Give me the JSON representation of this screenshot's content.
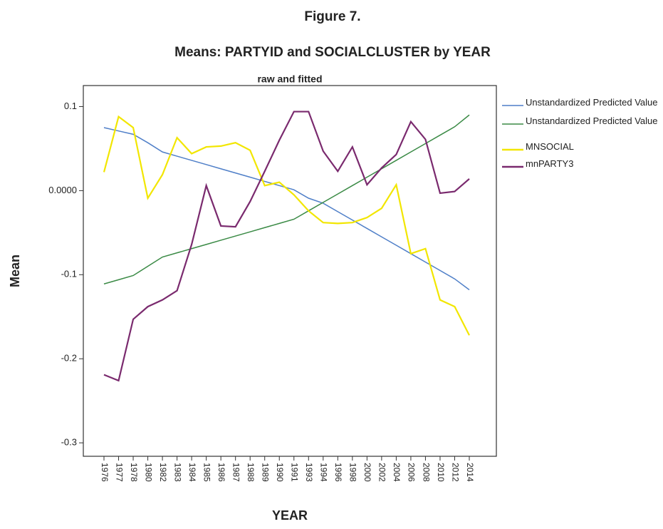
{
  "chart_data": {
    "type": "line",
    "figure_label": "Figure 7.",
    "title": "Means: PARTYID and SOCIALCLUSTER by YEAR",
    "subtitle": "raw and fitted",
    "y_label": "Mean",
    "x_label": "YEAR",
    "categories": [
      "1976",
      "1977",
      "1978",
      "1980",
      "1982",
      "1983",
      "1984",
      "1985",
      "1986",
      "1987",
      "1988",
      "1989",
      "1990",
      "1991",
      "1993",
      "1994",
      "1996",
      "1998",
      "2000",
      "2002",
      "2004",
      "2006",
      "2008",
      "2010",
      "2012",
      "2014"
    ],
    "series": [
      {
        "name": "Unstandardized Predicted Value",
        "color": "#4f7fc8",
        "values": [
          0.075,
          0.071,
          0.067,
          0.057,
          0.046,
          0.041,
          0.036,
          0.031,
          0.026,
          0.021,
          0.016,
          0.011,
          0.006,
          0.001,
          -0.009,
          -0.015,
          -0.025,
          -0.035,
          -0.045,
          -0.055,
          -0.065,
          -0.075,
          -0.085,
          -0.095,
          -0.105,
          -0.118
        ]
      },
      {
        "name": "Unstandardized Predicted Value",
        "color": "#3a8a45",
        "values": [
          -0.111,
          -0.106,
          -0.101,
          -0.09,
          -0.079,
          -0.074,
          -0.069,
          -0.064,
          -0.059,
          -0.054,
          -0.049,
          -0.044,
          -0.039,
          -0.034,
          -0.024,
          -0.014,
          -0.004,
          0.006,
          0.016,
          0.026,
          0.036,
          0.046,
          0.056,
          0.066,
          0.076,
          0.09
        ]
      },
      {
        "name": "MNSOCIAL",
        "color": "#f2e600",
        "values": [
          0.022,
          0.088,
          0.075,
          -0.009,
          0.019,
          0.063,
          0.044,
          0.052,
          0.053,
          0.057,
          0.048,
          0.006,
          0.01,
          -0.005,
          -0.024,
          -0.038,
          -0.039,
          -0.038,
          -0.032,
          -0.021,
          0.007,
          -0.075,
          -0.069,
          -0.13,
          -0.138,
          -0.172
        ]
      },
      {
        "name": "mnPARTY3",
        "color": "#7a2a6e",
        "values": [
          -0.219,
          -0.226,
          -0.153,
          -0.138,
          -0.13,
          -0.119,
          -0.064,
          0.006,
          -0.042,
          -0.043,
          -0.013,
          0.023,
          0.06,
          0.094,
          0.094,
          0.047,
          0.023,
          0.052,
          0.007,
          0.027,
          0.043,
          0.082,
          0.061,
          -0.003,
          -0.001,
          0.014
        ]
      }
    ],
    "ylim": [
      -0.316,
      0.125
    ],
    "yticks": [
      0.1,
      {
        "value": 0,
        "label": "0.0000"
      },
      -0.1,
      -0.2,
      -0.3
    ],
    "grid": false,
    "legend": "right"
  }
}
